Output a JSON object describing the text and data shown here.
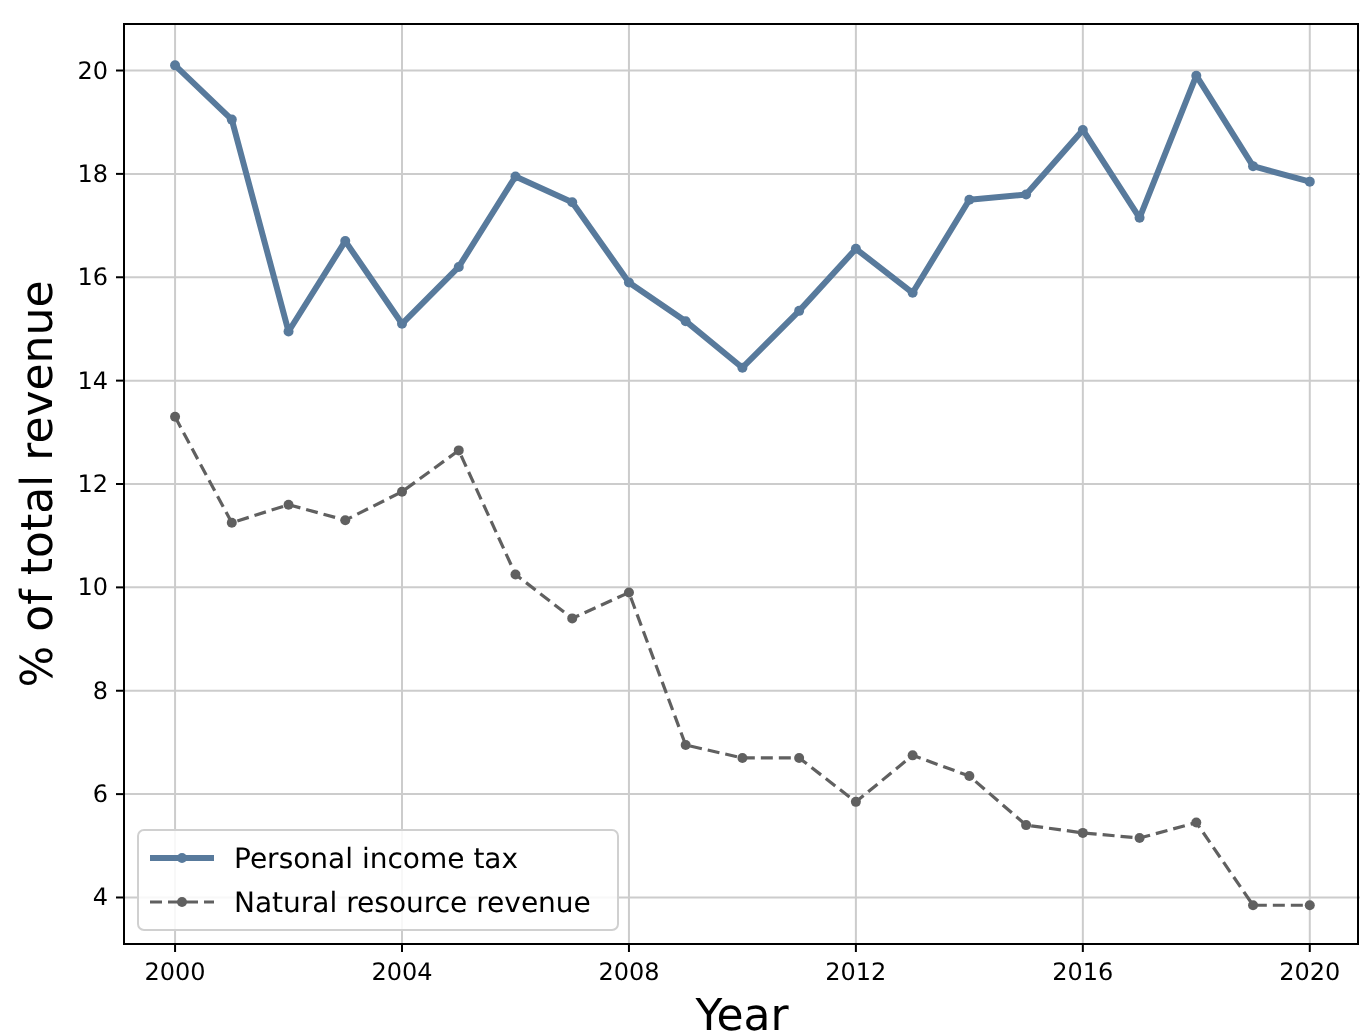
{
  "chart_data": {
    "type": "line",
    "xlabel": "Year",
    "ylabel": "% of total revenue",
    "x": [
      2000,
      2001,
      2002,
      2003,
      2004,
      2005,
      2006,
      2007,
      2008,
      2009,
      2010,
      2011,
      2012,
      2013,
      2014,
      2015,
      2016,
      2017,
      2018,
      2019,
      2020
    ],
    "xlim": [
      1999.1,
      2020.85
    ],
    "xticks": [
      2000,
      2004,
      2008,
      2012,
      2016,
      2020
    ],
    "ylim": [
      3.1,
      20.9
    ],
    "yticks": [
      4,
      6,
      8,
      10,
      12,
      14,
      16,
      18,
      20
    ],
    "grid": true,
    "legend": "bottom left",
    "marker": "circle",
    "series": [
      {
        "name": "Personal income tax",
        "color": "#587a9c",
        "line_style": "solid",
        "values": [
          20.1,
          19.05,
          14.95,
          16.7,
          15.1,
          16.2,
          17.95,
          17.45,
          15.9,
          15.15,
          14.25,
          15.35,
          16.55,
          15.7,
          17.5,
          17.6,
          18.85,
          17.15,
          19.9,
          18.15,
          17.85
        ]
      },
      {
        "name": "Natural resource revenue",
        "color": "#606060",
        "line_style": "dashed",
        "values": [
          13.3,
          11.25,
          11.6,
          11.3,
          11.85,
          12.65,
          10.25,
          9.4,
          9.9,
          6.95,
          6.7,
          6.7,
          5.85,
          6.75,
          6.35,
          5.4,
          5.25,
          5.15,
          5.45,
          3.85,
          3.85
        ]
      }
    ]
  }
}
